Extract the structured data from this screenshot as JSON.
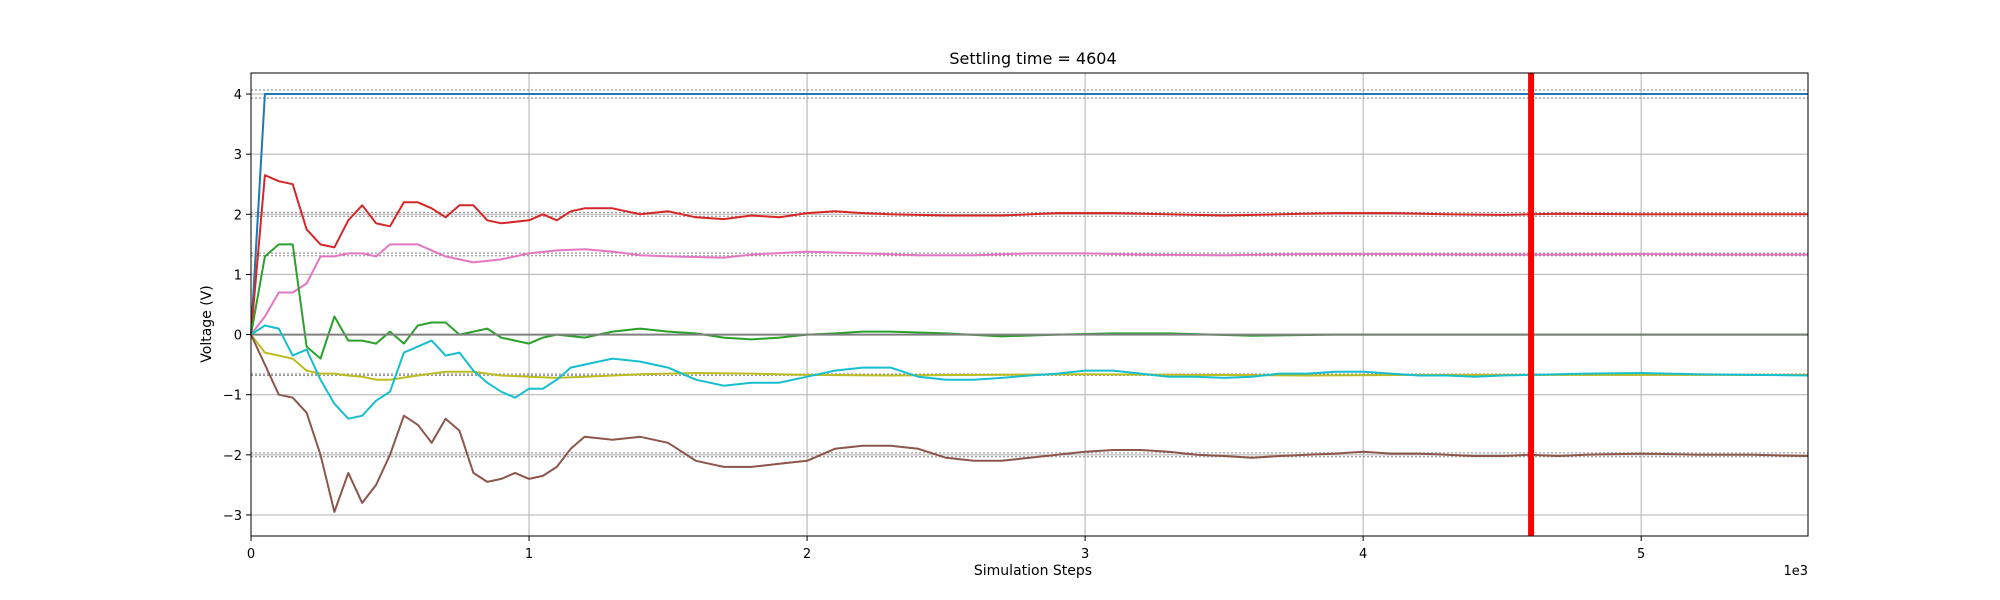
{
  "chart_data": {
    "type": "line",
    "title": "Settling time = 4604",
    "xlabel": "Simulation Steps",
    "ylabel": "Voltage (V)",
    "x_offset_text": "1e3",
    "xlim": [
      0,
      5600
    ],
    "ylim": [
      -3.35,
      4.35
    ],
    "x_ticks": [
      0,
      1000,
      2000,
      3000,
      4000,
      5000
    ],
    "x_tick_labels": [
      "0",
      "1",
      "2",
      "3",
      "4",
      "5"
    ],
    "y_ticks": [
      -3,
      -2,
      -1,
      0,
      1,
      2,
      3,
      4
    ],
    "y_tick_labels": [
      "−3",
      "−2",
      "−1",
      "0",
      "1",
      "2",
      "3",
      "4"
    ],
    "grid": true,
    "settling_time": 4604,
    "settling_line_color": "#ff0000",
    "reference_bands": [
      {
        "center": 4.0,
        "tolerance": 0.067
      },
      {
        "center": 2.0,
        "tolerance": 0.033
      },
      {
        "center": 1.333,
        "tolerance": 0.022
      },
      {
        "center": 0.0,
        "tolerance": 0.0
      },
      {
        "center": -0.667,
        "tolerance": 0.011
      },
      {
        "center": -2.0,
        "tolerance": 0.033
      }
    ],
    "series": [
      {
        "color": "#1f77b4",
        "points": [
          [
            0,
            0
          ],
          [
            50,
            4.0
          ],
          [
            5600,
            4.0
          ]
        ]
      },
      {
        "color": "#d62728",
        "points": [
          [
            0,
            0
          ],
          [
            50,
            2.65
          ],
          [
            100,
            2.55
          ],
          [
            150,
            2.5
          ],
          [
            200,
            1.75
          ],
          [
            250,
            1.5
          ],
          [
            300,
            1.45
          ],
          [
            350,
            1.9
          ],
          [
            400,
            2.15
          ],
          [
            450,
            1.85
          ],
          [
            500,
            1.8
          ],
          [
            550,
            2.2
          ],
          [
            600,
            2.2
          ],
          [
            650,
            2.1
          ],
          [
            700,
            1.95
          ],
          [
            750,
            2.15
          ],
          [
            800,
            2.15
          ],
          [
            850,
            1.9
          ],
          [
            900,
            1.85
          ],
          [
            1000,
            1.9
          ],
          [
            1050,
            2.0
          ],
          [
            1100,
            1.9
          ],
          [
            1150,
            2.05
          ],
          [
            1200,
            2.1
          ],
          [
            1300,
            2.1
          ],
          [
            1400,
            2.0
          ],
          [
            1500,
            2.05
          ],
          [
            1600,
            1.95
          ],
          [
            1700,
            1.92
          ],
          [
            1800,
            1.98
          ],
          [
            1900,
            1.95
          ],
          [
            2000,
            2.02
          ],
          [
            2100,
            2.05
          ],
          [
            2200,
            2.02
          ],
          [
            2300,
            2.0
          ],
          [
            2500,
            1.98
          ],
          [
            2700,
            1.98
          ],
          [
            2900,
            2.02
          ],
          [
            3100,
            2.02
          ],
          [
            3300,
            2.0
          ],
          [
            3500,
            1.98
          ],
          [
            3700,
            2.0
          ],
          [
            3900,
            2.02
          ],
          [
            4100,
            2.02
          ],
          [
            4300,
            2.0
          ],
          [
            4500,
            1.99
          ],
          [
            4700,
            2.01
          ],
          [
            5000,
            2.0
          ],
          [
            5300,
            2.0
          ],
          [
            5600,
            2.0
          ]
        ]
      },
      {
        "color": "#e377c2",
        "points": [
          [
            0,
            0
          ],
          [
            50,
            0.3
          ],
          [
            100,
            0.7
          ],
          [
            150,
            0.7
          ],
          [
            200,
            0.85
          ],
          [
            250,
            1.3
          ],
          [
            300,
            1.3
          ],
          [
            350,
            1.35
          ],
          [
            400,
            1.35
          ],
          [
            450,
            1.3
          ],
          [
            500,
            1.5
          ],
          [
            600,
            1.5
          ],
          [
            700,
            1.3
          ],
          [
            800,
            1.2
          ],
          [
            900,
            1.25
          ],
          [
            1000,
            1.35
          ],
          [
            1100,
            1.4
          ],
          [
            1200,
            1.42
          ],
          [
            1300,
            1.38
          ],
          [
            1400,
            1.32
          ],
          [
            1500,
            1.3
          ],
          [
            1700,
            1.28
          ],
          [
            1800,
            1.33
          ],
          [
            2000,
            1.38
          ],
          [
            2200,
            1.35
          ],
          [
            2400,
            1.32
          ],
          [
            2600,
            1.32
          ],
          [
            2800,
            1.35
          ],
          [
            3000,
            1.35
          ],
          [
            3200,
            1.33
          ],
          [
            3500,
            1.32
          ],
          [
            3800,
            1.34
          ],
          [
            4100,
            1.34
          ],
          [
            4400,
            1.33
          ],
          [
            4700,
            1.33
          ],
          [
            5000,
            1.34
          ],
          [
            5300,
            1.33
          ],
          [
            5600,
            1.33
          ]
        ]
      },
      {
        "color": "#2ca02c",
        "points": [
          [
            0,
            0
          ],
          [
            50,
            1.3
          ],
          [
            100,
            1.5
          ],
          [
            150,
            1.5
          ],
          [
            200,
            -0.2
          ],
          [
            250,
            -0.4
          ],
          [
            300,
            0.3
          ],
          [
            350,
            -0.1
          ],
          [
            400,
            -0.1
          ],
          [
            450,
            -0.15
          ],
          [
            500,
            0.05
          ],
          [
            550,
            -0.15
          ],
          [
            600,
            0.15
          ],
          [
            650,
            0.2
          ],
          [
            700,
            0.2
          ],
          [
            750,
            0.0
          ],
          [
            800,
            0.05
          ],
          [
            850,
            0.1
          ],
          [
            900,
            -0.05
          ],
          [
            950,
            -0.1
          ],
          [
            1000,
            -0.15
          ],
          [
            1050,
            -0.05
          ],
          [
            1100,
            0.0
          ],
          [
            1200,
            -0.05
          ],
          [
            1300,
            0.05
          ],
          [
            1400,
            0.1
          ],
          [
            1500,
            0.05
          ],
          [
            1600,
            0.02
          ],
          [
            1700,
            -0.05
          ],
          [
            1800,
            -0.08
          ],
          [
            1900,
            -0.05
          ],
          [
            2000,
            0.0
          ],
          [
            2100,
            0.02
          ],
          [
            2200,
            0.05
          ],
          [
            2300,
            0.05
          ],
          [
            2500,
            0.02
          ],
          [
            2700,
            -0.03
          ],
          [
            2900,
            0.0
          ],
          [
            3100,
            0.02
          ],
          [
            3300,
            0.02
          ],
          [
            3600,
            -0.02
          ],
          [
            3900,
            0.0
          ],
          [
            4200,
            0.0
          ],
          [
            4600,
            0.0
          ],
          [
            5000,
            0.0
          ],
          [
            5600,
            0.0
          ]
        ]
      },
      {
        "color": "#7f7f7f",
        "points": [
          [
            0,
            0
          ],
          [
            5600,
            0.0
          ]
        ]
      },
      {
        "color": "#bcbd22",
        "points": [
          [
            0,
            0
          ],
          [
            50,
            -0.3
          ],
          [
            100,
            -0.35
          ],
          [
            150,
            -0.4
          ],
          [
            200,
            -0.6
          ],
          [
            250,
            -0.65
          ],
          [
            300,
            -0.65
          ],
          [
            350,
            -0.68
          ],
          [
            400,
            -0.7
          ],
          [
            450,
            -0.75
          ],
          [
            500,
            -0.75
          ],
          [
            600,
            -0.68
          ],
          [
            700,
            -0.62
          ],
          [
            800,
            -0.62
          ],
          [
            900,
            -0.68
          ],
          [
            1000,
            -0.7
          ],
          [
            1100,
            -0.72
          ],
          [
            1200,
            -0.7
          ],
          [
            1400,
            -0.66
          ],
          [
            1600,
            -0.64
          ],
          [
            1800,
            -0.65
          ],
          [
            2000,
            -0.67
          ],
          [
            2300,
            -0.68
          ],
          [
            2600,
            -0.67
          ],
          [
            3000,
            -0.66
          ],
          [
            3400,
            -0.67
          ],
          [
            3800,
            -0.68
          ],
          [
            4200,
            -0.67
          ],
          [
            4600,
            -0.67
          ],
          [
            5000,
            -0.67
          ],
          [
            5300,
            -0.67
          ],
          [
            5600,
            -0.67
          ]
        ]
      },
      {
        "color": "#17becf",
        "points": [
          [
            0,
            0
          ],
          [
            50,
            0.15
          ],
          [
            100,
            0.1
          ],
          [
            150,
            -0.35
          ],
          [
            200,
            -0.25
          ],
          [
            250,
            -0.75
          ],
          [
            300,
            -1.15
          ],
          [
            350,
            -1.4
          ],
          [
            400,
            -1.35
          ],
          [
            450,
            -1.1
          ],
          [
            500,
            -0.95
          ],
          [
            550,
            -0.3
          ],
          [
            600,
            -0.2
          ],
          [
            650,
            -0.1
          ],
          [
            700,
            -0.35
          ],
          [
            750,
            -0.3
          ],
          [
            800,
            -0.6
          ],
          [
            850,
            -0.8
          ],
          [
            900,
            -0.95
          ],
          [
            950,
            -1.05
          ],
          [
            1000,
            -0.9
          ],
          [
            1050,
            -0.9
          ],
          [
            1100,
            -0.75
          ],
          [
            1150,
            -0.55
          ],
          [
            1200,
            -0.5
          ],
          [
            1300,
            -0.4
          ],
          [
            1400,
            -0.45
          ],
          [
            1500,
            -0.55
          ],
          [
            1600,
            -0.75
          ],
          [
            1700,
            -0.85
          ],
          [
            1800,
            -0.8
          ],
          [
            1900,
            -0.8
          ],
          [
            2000,
            -0.7
          ],
          [
            2100,
            -0.6
          ],
          [
            2200,
            -0.55
          ],
          [
            2300,
            -0.55
          ],
          [
            2400,
            -0.7
          ],
          [
            2500,
            -0.75
          ],
          [
            2600,
            -0.75
          ],
          [
            2700,
            -0.72
          ],
          [
            2800,
            -0.68
          ],
          [
            2900,
            -0.65
          ],
          [
            3000,
            -0.6
          ],
          [
            3100,
            -0.6
          ],
          [
            3200,
            -0.65
          ],
          [
            3300,
            -0.7
          ],
          [
            3400,
            -0.7
          ],
          [
            3500,
            -0.72
          ],
          [
            3600,
            -0.7
          ],
          [
            3700,
            -0.65
          ],
          [
            3800,
            -0.65
          ],
          [
            3900,
            -0.62
          ],
          [
            4000,
            -0.62
          ],
          [
            4100,
            -0.65
          ],
          [
            4200,
            -0.68
          ],
          [
            4300,
            -0.68
          ],
          [
            4400,
            -0.7
          ],
          [
            4500,
            -0.68
          ],
          [
            4600,
            -0.67
          ],
          [
            4700,
            -0.66
          ],
          [
            4800,
            -0.65
          ],
          [
            5000,
            -0.64
          ],
          [
            5200,
            -0.66
          ],
          [
            5400,
            -0.67
          ],
          [
            5600,
            -0.68
          ]
        ]
      },
      {
        "color": "#8c564b",
        "points": [
          [
            0,
            0
          ],
          [
            50,
            -0.5
          ],
          [
            100,
            -1.0
          ],
          [
            150,
            -1.05
          ],
          [
            200,
            -1.3
          ],
          [
            250,
            -2.0
          ],
          [
            300,
            -2.95
          ],
          [
            350,
            -2.3
          ],
          [
            400,
            -2.8
          ],
          [
            450,
            -2.5
          ],
          [
            500,
            -2.0
          ],
          [
            550,
            -1.35
          ],
          [
            600,
            -1.5
          ],
          [
            650,
            -1.8
          ],
          [
            700,
            -1.4
          ],
          [
            750,
            -1.6
          ],
          [
            800,
            -2.3
          ],
          [
            850,
            -2.45
          ],
          [
            900,
            -2.4
          ],
          [
            950,
            -2.3
          ],
          [
            1000,
            -2.4
          ],
          [
            1050,
            -2.35
          ],
          [
            1100,
            -2.2
          ],
          [
            1150,
            -1.9
          ],
          [
            1200,
            -1.7
          ],
          [
            1300,
            -1.75
          ],
          [
            1400,
            -1.7
          ],
          [
            1500,
            -1.8
          ],
          [
            1600,
            -2.1
          ],
          [
            1700,
            -2.2
          ],
          [
            1800,
            -2.2
          ],
          [
            1900,
            -2.15
          ],
          [
            2000,
            -2.1
          ],
          [
            2100,
            -1.9
          ],
          [
            2200,
            -1.85
          ],
          [
            2300,
            -1.85
          ],
          [
            2400,
            -1.9
          ],
          [
            2500,
            -2.05
          ],
          [
            2600,
            -2.1
          ],
          [
            2700,
            -2.1
          ],
          [
            2800,
            -2.05
          ],
          [
            2900,
            -2.0
          ],
          [
            3000,
            -1.95
          ],
          [
            3100,
            -1.92
          ],
          [
            3200,
            -1.92
          ],
          [
            3300,
            -1.95
          ],
          [
            3400,
            -2.0
          ],
          [
            3500,
            -2.02
          ],
          [
            3600,
            -2.05
          ],
          [
            3700,
            -2.02
          ],
          [
            3800,
            -2.0
          ],
          [
            3900,
            -1.98
          ],
          [
            4000,
            -1.95
          ],
          [
            4100,
            -1.98
          ],
          [
            4200,
            -1.98
          ],
          [
            4300,
            -2.0
          ],
          [
            4400,
            -2.02
          ],
          [
            4500,
            -2.02
          ],
          [
            4600,
            -2.0
          ],
          [
            4700,
            -2.02
          ],
          [
            4800,
            -2.0
          ],
          [
            5000,
            -1.98
          ],
          [
            5200,
            -2.0
          ],
          [
            5400,
            -2.0
          ],
          [
            5600,
            -2.02
          ]
        ]
      }
    ]
  }
}
